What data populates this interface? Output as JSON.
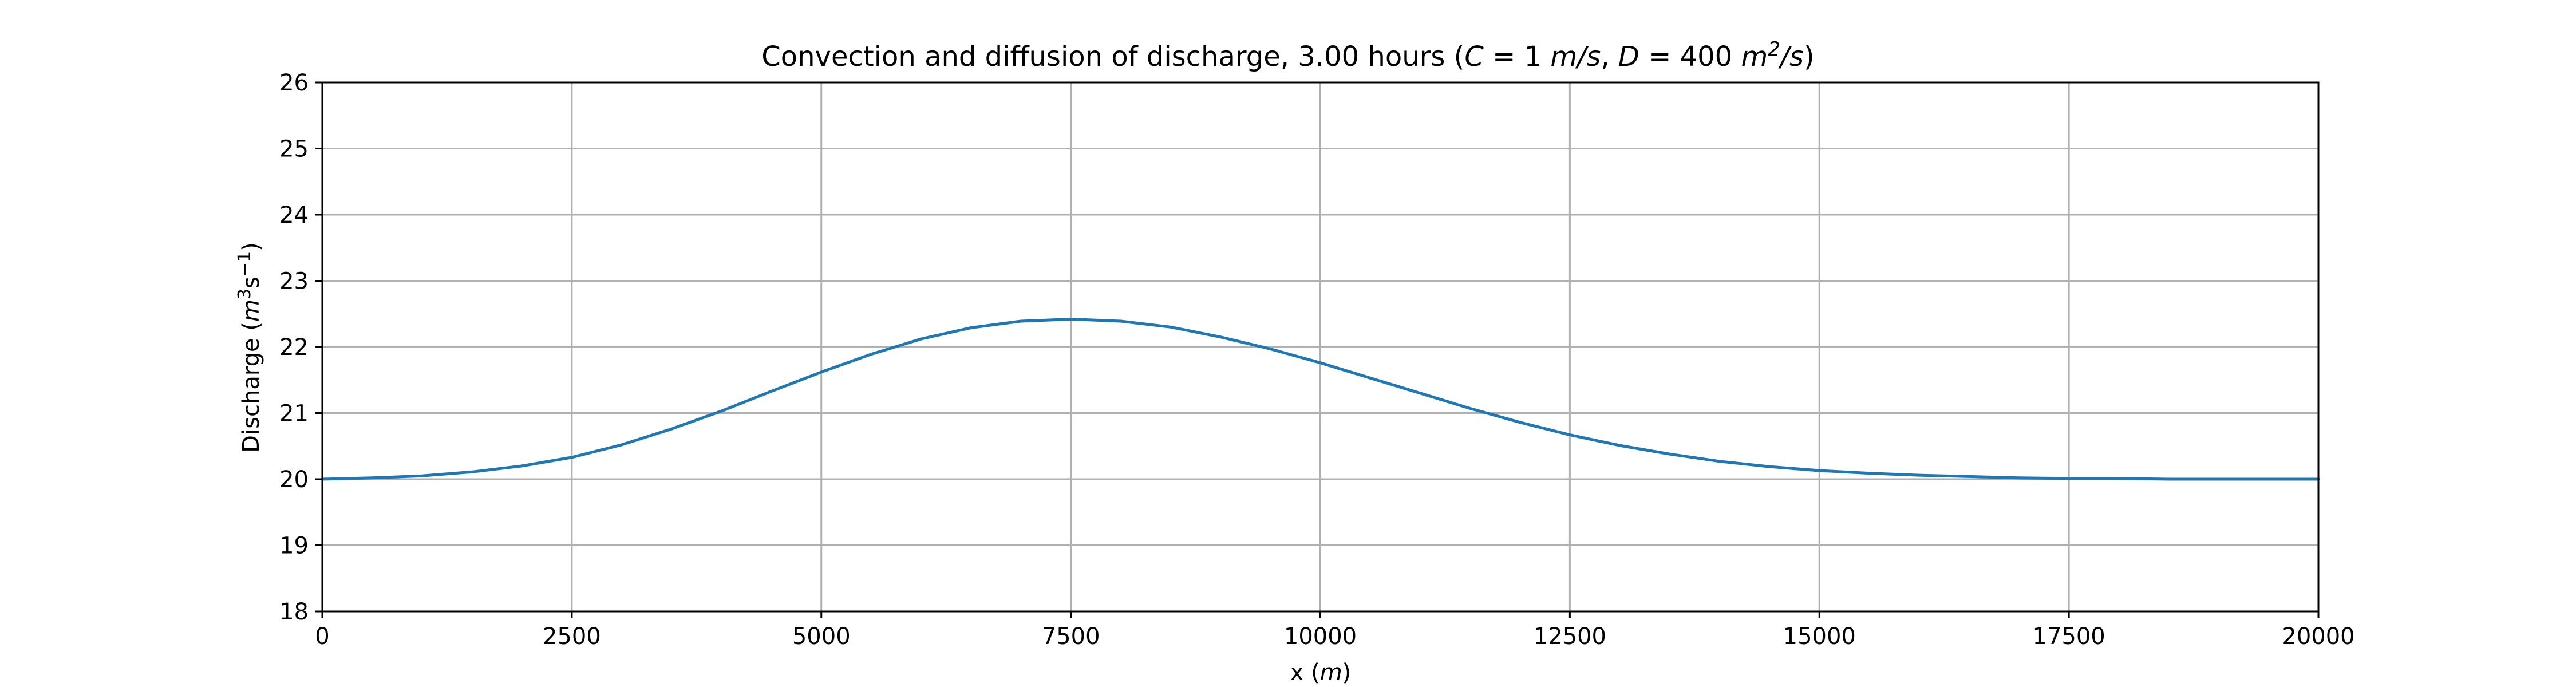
{
  "chart_data": {
    "type": "line",
    "title_prefix": "Convection and diffusion of discharge, 3.00 hours (",
    "title_c": "C",
    "title_eq1": " = 1 ",
    "title_unit_c": "m/s",
    "title_sep": ", ",
    "title_d": "D",
    "title_eq2": " = 400 ",
    "title_unit_d_base": "m",
    "title_unit_d_exp": "2",
    "title_unit_d_tail": "/s",
    "title_suffix": ")",
    "xlabel_text": "x (",
    "xlabel_unit": "m",
    "xlabel_close": ")",
    "ylabel_text": "Discharge (",
    "ylabel_m": "m",
    "ylabel_exp3": "3",
    "ylabel_s": "s",
    "ylabel_expneg": "−1",
    "ylabel_close": ")",
    "xlim": [
      0,
      20000
    ],
    "ylim": [
      18,
      26
    ],
    "xticks": [
      0,
      2500,
      5000,
      7500,
      10000,
      12500,
      15000,
      17500,
      20000
    ],
    "yticks": [
      18,
      19,
      20,
      21,
      22,
      23,
      24,
      25,
      26
    ],
    "grid": true,
    "line_color": "#1f77b4",
    "grid_color": "#b0b0b0",
    "series": [
      {
        "x": [
          0,
          500,
          1000,
          1500,
          2000,
          2500,
          3000,
          3500,
          4000,
          4500,
          5000,
          5500,
          6000,
          6500,
          7000,
          7500,
          8000,
          8500,
          9000,
          9500,
          10000,
          10500,
          11000,
          11500,
          12000,
          12500,
          13000,
          13500,
          14000,
          14500,
          15000,
          15500,
          16000,
          16500,
          17000,
          17500,
          18000,
          18500,
          19000,
          19500,
          20000
        ],
        "y": [
          20.0,
          20.02,
          20.05,
          20.11,
          20.2,
          20.33,
          20.52,
          20.76,
          21.03,
          21.33,
          21.62,
          21.89,
          22.12,
          22.29,
          22.39,
          22.42,
          22.39,
          22.3,
          22.15,
          21.97,
          21.76,
          21.53,
          21.3,
          21.07,
          20.86,
          20.67,
          20.51,
          20.38,
          20.27,
          20.19,
          20.13,
          20.09,
          20.06,
          20.04,
          20.02,
          20.01,
          20.01,
          20.0,
          20.0,
          20.0,
          20.0
        ]
      }
    ]
  }
}
